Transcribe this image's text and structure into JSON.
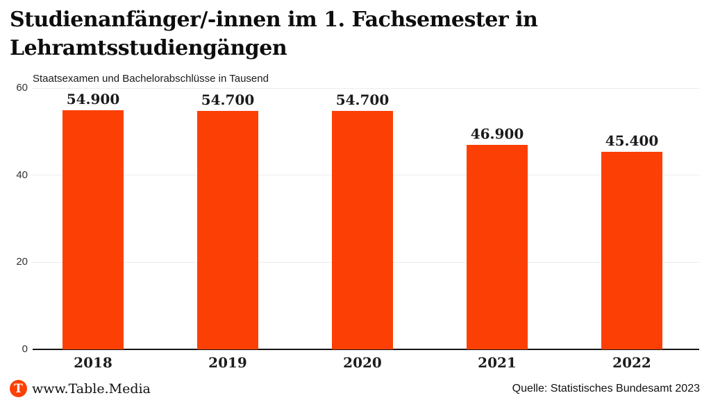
{
  "title": "Studienanfänger/-innen im 1. Fachsemester in Lehramtsstudiengängen",
  "subtitle": "Staatsexamen und Bachelorabschlüsse in Tausend",
  "footer": {
    "logo_letter": "T",
    "site": "www.Table.Media",
    "source": "Quelle: Statistisches Bundesamt 2023"
  },
  "colors": {
    "bar": "#FC4005",
    "brand": "#FC4005",
    "axis": "#141414",
    "grid": "#ececec"
  },
  "chart_data": {
    "type": "bar",
    "title": "Studienanfänger/-innen im 1. Fachsemester in Lehramtsstudiengängen",
    "subtitle": "Staatsexamen und Bachelorabschlüsse in Tausend",
    "categories": [
      "2018",
      "2019",
      "2020",
      "2021",
      "2022"
    ],
    "values": [
      54.9,
      54.7,
      54.7,
      46.9,
      45.4
    ],
    "value_labels": [
      "54.900",
      "54.700",
      "54.700",
      "46.900",
      "45.400"
    ],
    "unit": "Tausend",
    "xlabel": "",
    "ylabel": "Staatsexamen und Bachelorabschlüsse in Tausend",
    "ylim": [
      0,
      60
    ],
    "yticks": [
      60,
      40,
      20,
      0
    ],
    "grid": "horizontal",
    "legend": "none",
    "bar_color": "#FC4005"
  }
}
